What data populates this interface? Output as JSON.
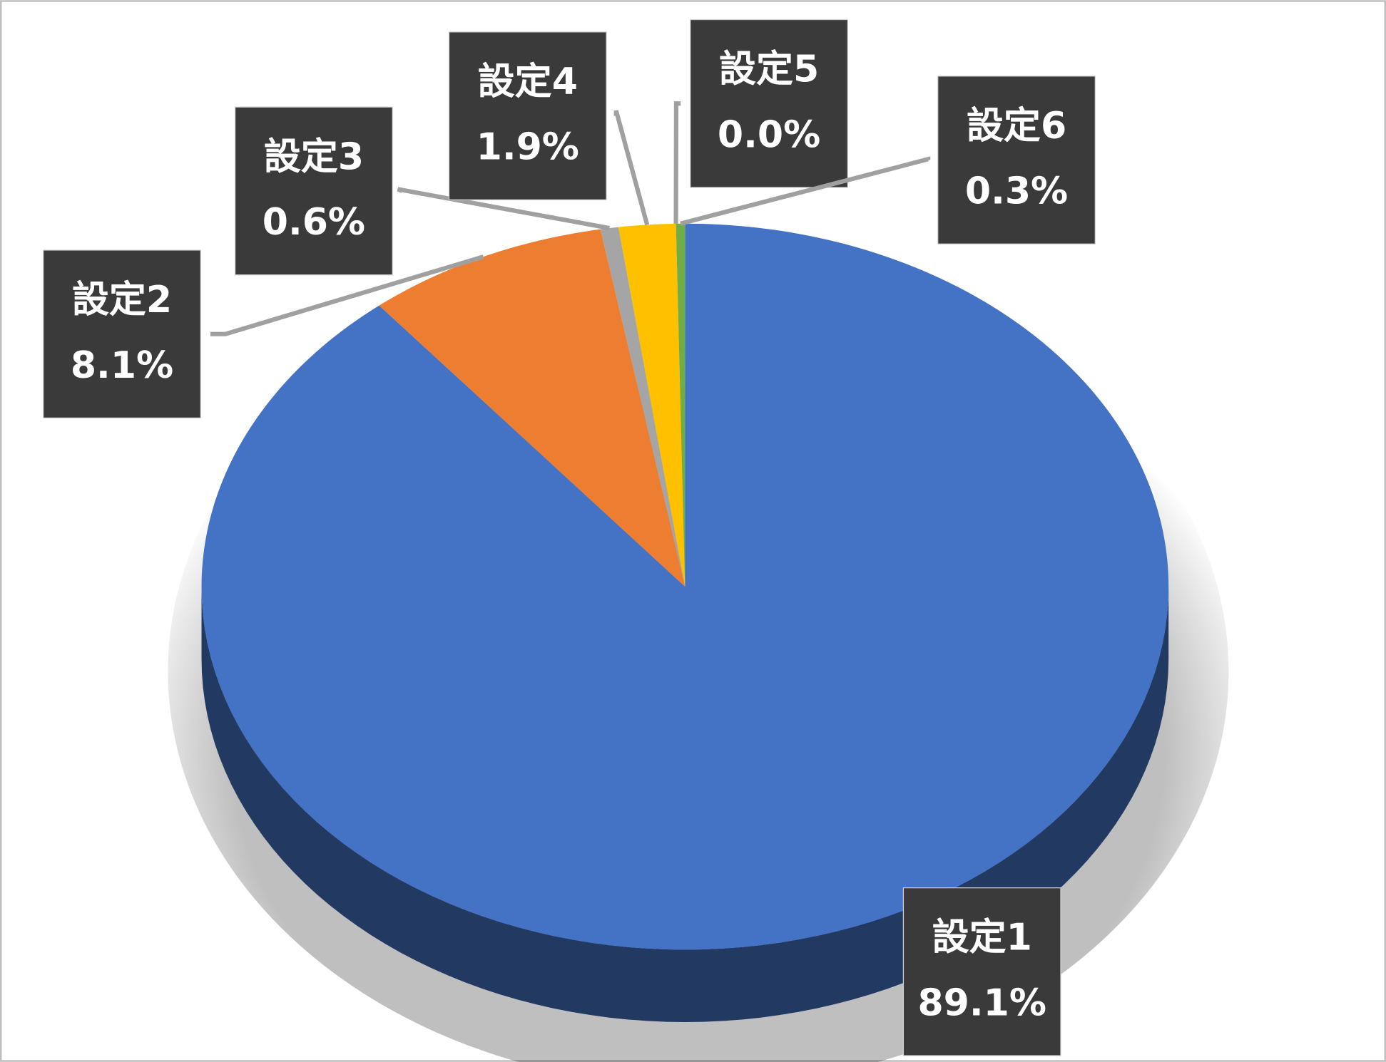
{
  "chart_data": {
    "type": "pie3d",
    "categories": [
      "設定1",
      "設定2",
      "設定3",
      "設定4",
      "設定5",
      "設定6"
    ],
    "values": [
      89.1,
      8.1,
      0.6,
      1.9,
      0.0,
      0.3
    ],
    "value_labels": [
      "89.1%",
      "8.1%",
      "0.6%",
      "1.9%",
      "0.0%",
      "0.3%"
    ],
    "colors": [
      "#4472c4",
      "#ed7d31",
      "#a5a5a5",
      "#ffc000",
      "#5b9bd5",
      "#70ad47"
    ]
  }
}
